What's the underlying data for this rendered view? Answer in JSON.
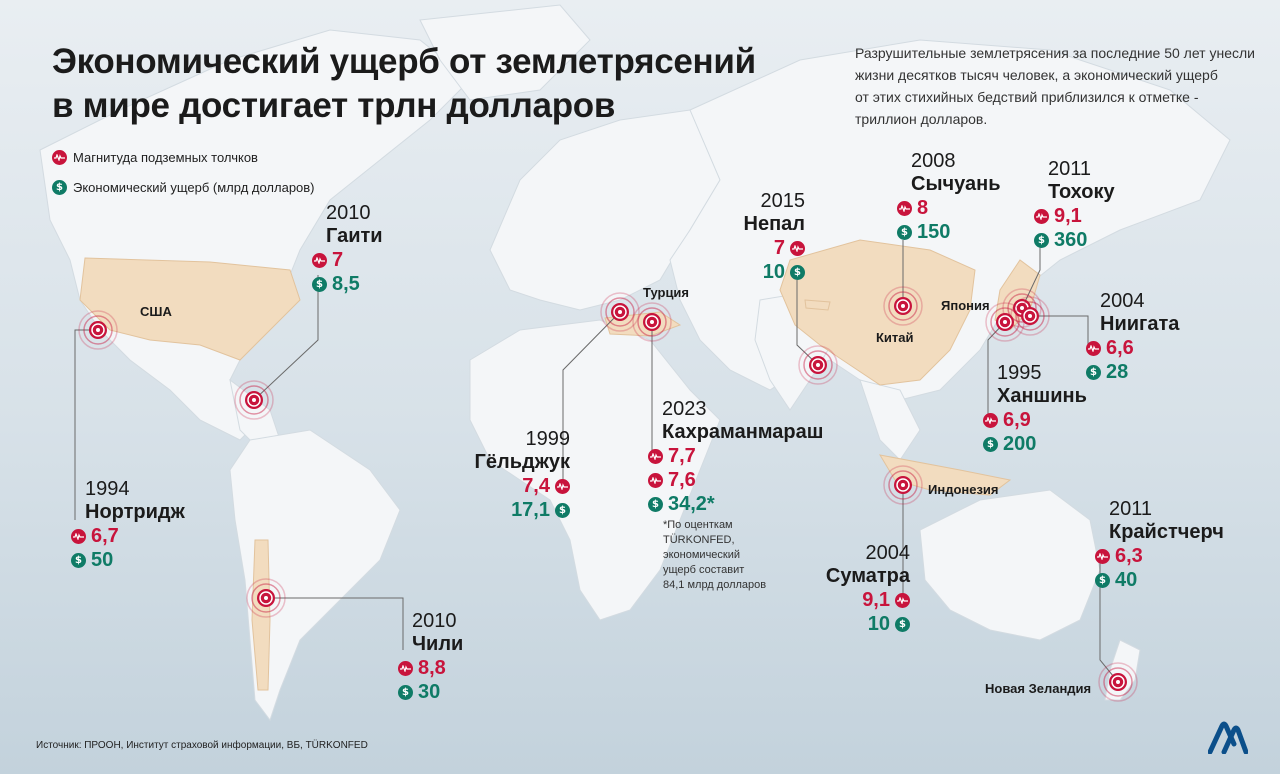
{
  "title_lines": [
    "Экономический ущерб от землетрясений",
    "в мире достигает трлн долларов"
  ],
  "intro_lines": [
    "Разрушительные землетрясения за последние 50 лет унесли",
    "жизни десятков тысяч человек, а экономический ущерб",
    "от этих стихийных бедствий приблизился к отметке -",
    "триллион долларов."
  ],
  "legend": {
    "magnitude": "Магнитуда подземных толчков",
    "damage": "Экономический ущерб (млрд долларов)"
  },
  "colors": {
    "magnitude": "#c8143c",
    "damage": "#0f7b66",
    "highlight_country": "#f2dcbf",
    "land": "#f4f6f8"
  },
  "icons": {
    "magnitude": "seismograph-icon",
    "damage": "dollar-icon",
    "epicenter": "epicenter-ring-icon"
  },
  "earthquakes": [
    {
      "id": "haiti",
      "year": "2010",
      "name": "Гаити",
      "magnitude": "7",
      "damage": "8,5"
    },
    {
      "id": "northridge",
      "year": "1994",
      "name": "Нортридж",
      "magnitude": "6,7",
      "damage": "50"
    },
    {
      "id": "chile",
      "year": "2010",
      "name": "Чили",
      "magnitude": "8,8",
      "damage": "30"
    },
    {
      "id": "golcuk",
      "year": "1999",
      "name": "Гёльджук",
      "magnitude": "7,4",
      "damage": "17,1"
    },
    {
      "id": "kahramanmaras",
      "year": "2023",
      "name": "Кахраманмараш",
      "magnitude": "7,7",
      "magnitude2": "7,6",
      "damage": "34,2*"
    },
    {
      "id": "nepal",
      "year": "2015",
      "name": "Непал",
      "magnitude": "7",
      "damage": "10"
    },
    {
      "id": "sichuan",
      "year": "2008",
      "name": "Сычуань",
      "magnitude": "8",
      "damage": "150"
    },
    {
      "id": "tohoku",
      "year": "2011",
      "name": "Тохоку",
      "magnitude": "9,1",
      "damage": "360"
    },
    {
      "id": "niigata",
      "year": "2004",
      "name": "Ниигата",
      "magnitude": "6,6",
      "damage": "28"
    },
    {
      "id": "hanshin",
      "year": "1995",
      "name": "Ханшинь",
      "magnitude": "6,9",
      "damage": "200"
    },
    {
      "id": "sumatra",
      "year": "2004",
      "name": "Суматра",
      "magnitude": "9,1",
      "damage": "10"
    },
    {
      "id": "christchurch",
      "year": "2011",
      "name": "Крайстчерч",
      "magnitude": "6,3",
      "damage": "40"
    }
  ],
  "countries": {
    "usa": "США",
    "turkey": "Турция",
    "china": "Китай",
    "japan": "Япония",
    "indonesia": "Индонезия",
    "new_zealand": "Новая Зеландия"
  },
  "note_lines": [
    "*По оценткам",
    "TÜRKONFED,",
    "экономический",
    "ущерб составит",
    "84,1 млрд долларов"
  ],
  "source": "Источник: ПРООН, Институт страховой информации, ВБ, TÜRKONFED",
  "logo": "AA"
}
